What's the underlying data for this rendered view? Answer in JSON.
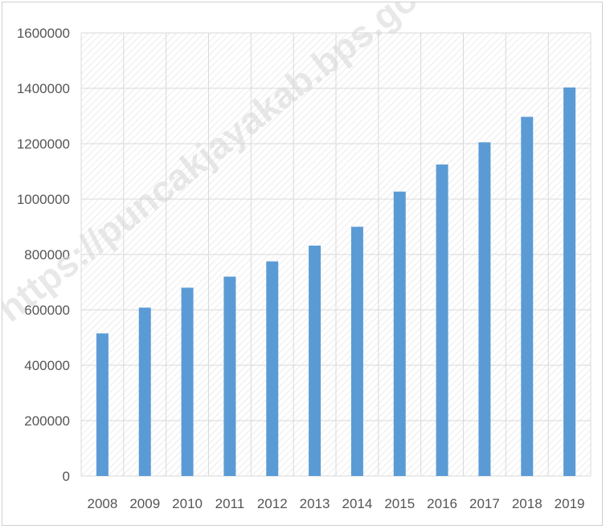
{
  "watermark": "https://puncakjayakab.bps.go.id",
  "chart_data": {
    "type": "bar",
    "title": "",
    "xlabel": "",
    "ylabel": "",
    "categories": [
      "2008",
      "2009",
      "2010",
      "2011",
      "2012",
      "2013",
      "2014",
      "2015",
      "2016",
      "2017",
      "2018",
      "2019"
    ],
    "values": [
      515000,
      608000,
      680000,
      720000,
      775000,
      832000,
      900000,
      1027000,
      1125000,
      1205000,
      1297000,
      1403000
    ],
    "ylim": [
      0,
      1600000
    ],
    "yticks": [
      0,
      200000,
      400000,
      600000,
      800000,
      1000000,
      1200000,
      1400000,
      1600000
    ],
    "grid": true,
    "legend": "none",
    "colors": {
      "bar": "#5b9bd5",
      "grid": "#d9d9d9",
      "plot_pattern": "#e4e4e4"
    }
  }
}
